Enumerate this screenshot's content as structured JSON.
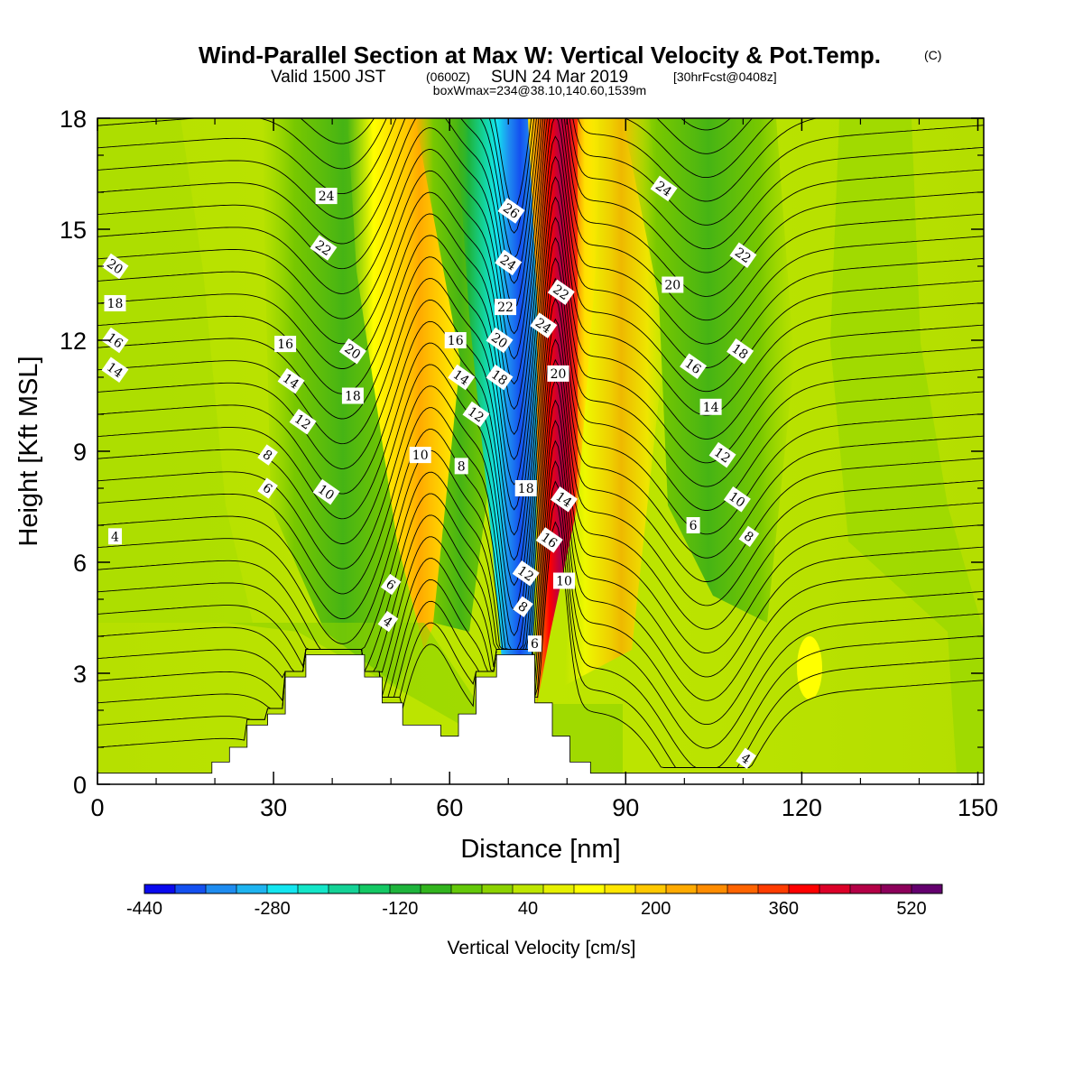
{
  "title": {
    "main": "Wind-Parallel Section at Max W: Vertical Velocity & Pot.Temp.",
    "main_mark": "(C)",
    "valid_a": "Valid 1500 JST",
    "valid_b": "(0600Z)",
    "valid_c": "SUN 24 Mar 2019",
    "valid_d": "[30hrFcst@0408z]",
    "box": "boxWmax=234@38.10,140.60,1539m"
  },
  "chart_data": {
    "type": "heatmap",
    "xlabel": "Distance [nm]",
    "ylabel": "Height [Kft MSL]",
    "xlim": [
      0,
      151
    ],
    "ylim": [
      0,
      18
    ],
    "x_ticks": [
      "0",
      "30",
      "60",
      "90",
      "120",
      "150"
    ],
    "y_ticks": [
      "0",
      "3",
      "6",
      "9",
      "12",
      "15",
      "18"
    ],
    "colorbar": {
      "label": "Vertical Velocity [cm/s]",
      "tick_labels": [
        "-440",
        "-280",
        "-120",
        "40",
        "200",
        "360",
        "520"
      ],
      "colors": [
        "#0a0aee",
        "#1450f0",
        "#1e8cf0",
        "#1eb4f0",
        "#14e6f0",
        "#14e6c8",
        "#14d296",
        "#14c864",
        "#1eb43c",
        "#32b41e",
        "#64c80a",
        "#8cd200",
        "#bee600",
        "#e6f000",
        "#ffff00",
        "#ffe600",
        "#ffc800",
        "#ffaa00",
        "#ff8c00",
        "#ff6400",
        "#ff3c00",
        "#ff0000",
        "#dc0028",
        "#b40046",
        "#8c005a",
        "#64006e"
      ]
    },
    "background_field": "yellow-green (~0 to 40 cm/s)",
    "features": [
      {
        "name": "upper-wide-green-band",
        "x": [
          28,
          48
        ],
        "y": [
          2.8,
          18
        ],
        "value": -60
      },
      {
        "name": "updraft-orange-left",
        "x": [
          45,
          58
        ],
        "y": [
          4,
          18
        ],
        "value": 150
      },
      {
        "name": "downdraft-blue-core",
        "x": [
          62,
          76
        ],
        "y": [
          3.5,
          18
        ],
        "value": -380
      },
      {
        "name": "updraft-red-core",
        "x": [
          74,
          84
        ],
        "y": [
          3.5,
          18
        ],
        "value": 450
      },
      {
        "name": "downstream-green-band",
        "x": [
          96,
          120
        ],
        "y": [
          5,
          18
        ],
        "value": -70
      },
      {
        "name": "small-yellow-spot",
        "x": [
          120,
          123
        ],
        "y": [
          2.5,
          4
        ],
        "value": 60
      }
    ],
    "terrain_kft": [
      {
        "x": 0,
        "h": 0.3
      },
      {
        "x": 19.5,
        "h": 0.3
      },
      {
        "x": 19.5,
        "h": 0.6
      },
      {
        "x": 22.5,
        "h": 0.6
      },
      {
        "x": 22.5,
        "h": 1.0
      },
      {
        "x": 25.5,
        "h": 1.0
      },
      {
        "x": 25.5,
        "h": 1.6
      },
      {
        "x": 29,
        "h": 1.6
      },
      {
        "x": 29,
        "h": 1.9
      },
      {
        "x": 32,
        "h": 1.9
      },
      {
        "x": 32,
        "h": 2.9
      },
      {
        "x": 35.5,
        "h": 2.9
      },
      {
        "x": 35.5,
        "h": 3.5
      },
      {
        "x": 45.5,
        "h": 3.5
      },
      {
        "x": 45.5,
        "h": 2.9
      },
      {
        "x": 48.5,
        "h": 2.9
      },
      {
        "x": 48.5,
        "h": 2.2
      },
      {
        "x": 52,
        "h": 2.2
      },
      {
        "x": 52,
        "h": 1.6
      },
      {
        "x": 58.5,
        "h": 1.6
      },
      {
        "x": 58.5,
        "h": 1.3
      },
      {
        "x": 61.5,
        "h": 1.3
      },
      {
        "x": 61.5,
        "h": 1.9
      },
      {
        "x": 64.5,
        "h": 1.9
      },
      {
        "x": 64.5,
        "h": 2.9
      },
      {
        "x": 68,
        "h": 2.9
      },
      {
        "x": 68,
        "h": 3.5
      },
      {
        "x": 74.5,
        "h": 3.5
      },
      {
        "x": 74.5,
        "h": 2.2
      },
      {
        "x": 77.5,
        "h": 2.2
      },
      {
        "x": 77.5,
        "h": 1.3
      },
      {
        "x": 80.5,
        "h": 1.3
      },
      {
        "x": 80.5,
        "h": 0.6
      },
      {
        "x": 84,
        "h": 0.6
      },
      {
        "x": 84,
        "h": 0.3
      },
      {
        "x": 151,
        "h": 0.3
      }
    ],
    "theta_contour_labels": [
      {
        "text": "24",
        "x": 39,
        "y": 15.9
      },
      {
        "text": "22",
        "x": 38.5,
        "y": 14.5
      },
      {
        "text": "20",
        "x": 3,
        "y": 14.0
      },
      {
        "text": "18",
        "x": 3,
        "y": 13.0
      },
      {
        "text": "16",
        "x": 3,
        "y": 12.0
      },
      {
        "text": "14",
        "x": 3,
        "y": 11.2
      },
      {
        "text": "16",
        "x": 32,
        "y": 11.9
      },
      {
        "text": "20",
        "x": 43.5,
        "y": 11.7
      },
      {
        "text": "14",
        "x": 33,
        "y": 10.9
      },
      {
        "text": "18",
        "x": 43.5,
        "y": 10.5
      },
      {
        "text": "12",
        "x": 35,
        "y": 9.8
      },
      {
        "text": "8",
        "x": 29,
        "y": 8.9
      },
      {
        "text": "10",
        "x": 55,
        "y": 8.9
      },
      {
        "text": "6",
        "x": 29,
        "y": 8.0
      },
      {
        "text": "10",
        "x": 39,
        "y": 7.9
      },
      {
        "text": "4",
        "x": 3,
        "y": 6.7
      },
      {
        "text": "6",
        "x": 50,
        "y": 5.4
      },
      {
        "text": "4",
        "x": 49.5,
        "y": 4.4
      },
      {
        "text": "16",
        "x": 61,
        "y": 12.0
      },
      {
        "text": "14",
        "x": 62,
        "y": 11.0
      },
      {
        "text": "12",
        "x": 64.5,
        "y": 10.0
      },
      {
        "text": "8",
        "x": 62,
        "y": 8.6
      },
      {
        "text": "26",
        "x": 70.5,
        "y": 15.5
      },
      {
        "text": "24",
        "x": 70,
        "y": 14.1
      },
      {
        "text": "22",
        "x": 69.5,
        "y": 12.9
      },
      {
        "text": "20",
        "x": 68.5,
        "y": 12.0
      },
      {
        "text": "18",
        "x": 68.5,
        "y": 11.0
      },
      {
        "text": "18",
        "x": 73,
        "y": 8.0
      },
      {
        "text": "12",
        "x": 73,
        "y": 5.7
      },
      {
        "text": "8",
        "x": 72.5,
        "y": 4.8
      },
      {
        "text": "6",
        "x": 74.5,
        "y": 3.8
      },
      {
        "text": "22",
        "x": 79,
        "y": 13.3
      },
      {
        "text": "24",
        "x": 76,
        "y": 12.4
      },
      {
        "text": "20",
        "x": 78.5,
        "y": 11.1
      },
      {
        "text": "14",
        "x": 79.5,
        "y": 7.7
      },
      {
        "text": "16",
        "x": 77,
        "y": 6.6
      },
      {
        "text": "10",
        "x": 79.5,
        "y": 5.5
      },
      {
        "text": "24",
        "x": 96.5,
        "y": 16.1
      },
      {
        "text": "22",
        "x": 110,
        "y": 14.3
      },
      {
        "text": "20",
        "x": 98,
        "y": 13.5
      },
      {
        "text": "18",
        "x": 109.5,
        "y": 11.7
      },
      {
        "text": "16",
        "x": 101.5,
        "y": 11.3
      },
      {
        "text": "14",
        "x": 104.5,
        "y": 10.2
      },
      {
        "text": "12",
        "x": 106.5,
        "y": 8.9
      },
      {
        "text": "10",
        "x": 109,
        "y": 7.7
      },
      {
        "text": "6",
        "x": 101.5,
        "y": 7.0
      },
      {
        "text": "8",
        "x": 111,
        "y": 6.7
      },
      {
        "text": "4",
        "x": 110.5,
        "y": 0.7
      }
    ]
  }
}
